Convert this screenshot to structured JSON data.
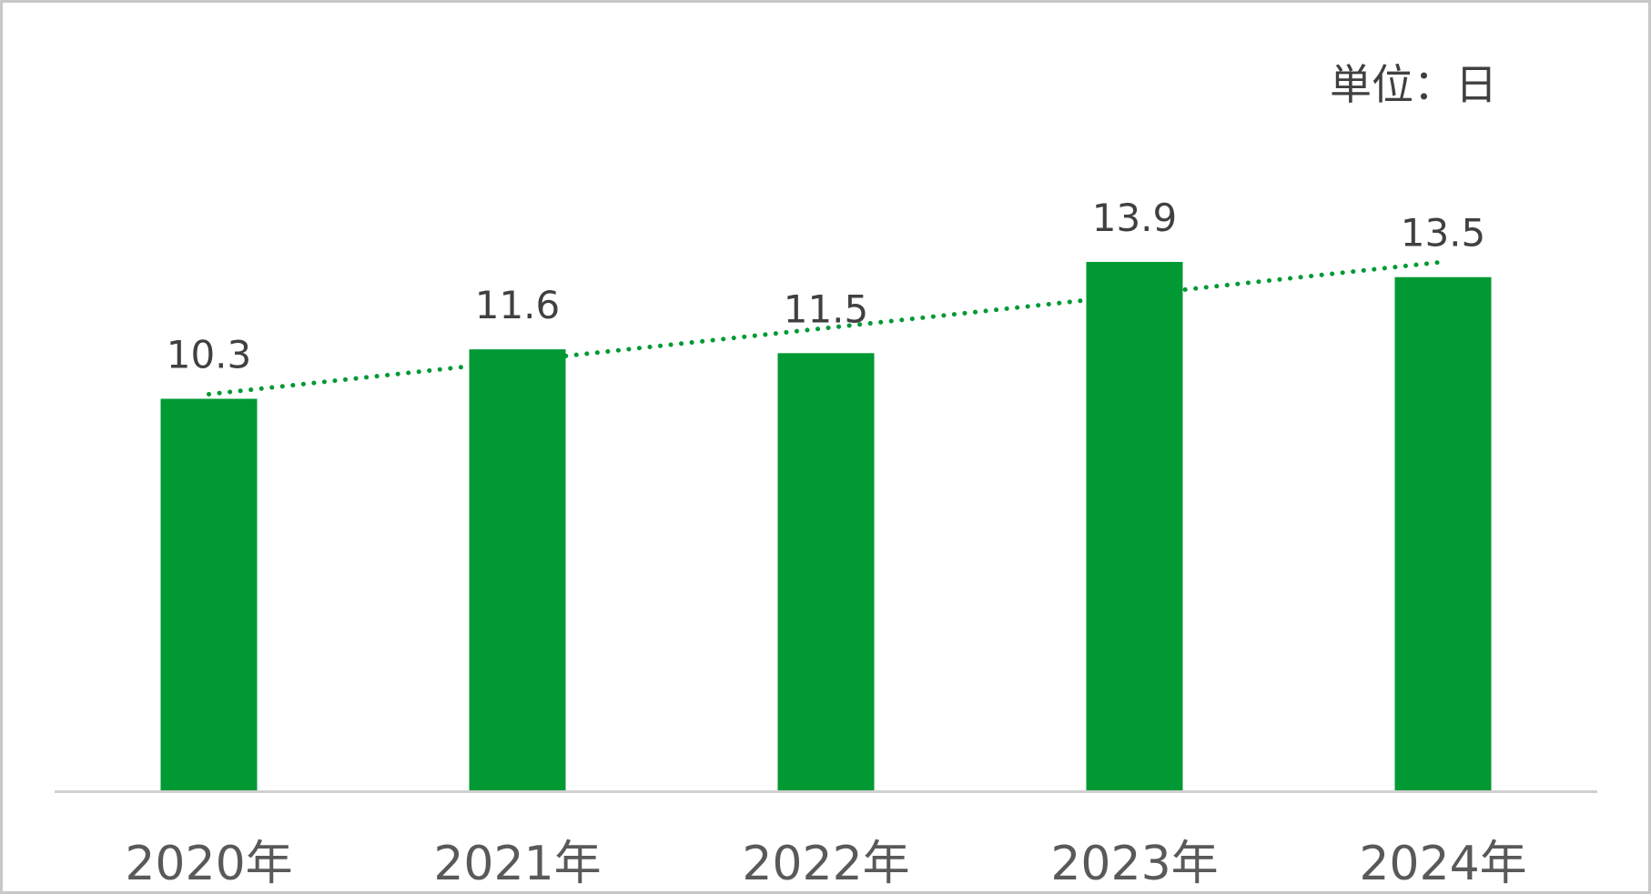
{
  "chart_data": {
    "type": "bar",
    "unit_label": "単位：日",
    "categories": [
      "2020年",
      "2021年",
      "2022年",
      "2023年",
      "2024年"
    ],
    "values": [
      10.3,
      11.6,
      11.5,
      13.9,
      13.5
    ],
    "data_labels": [
      "10.3",
      "11.6",
      "11.5",
      "13.9",
      "13.5"
    ],
    "bar_color": "#009933",
    "trendline": {
      "type": "linear",
      "style": "dotted",
      "color": "#009933"
    },
    "ylim": [
      0,
      20
    ],
    "grid": false,
    "legend": "none"
  }
}
